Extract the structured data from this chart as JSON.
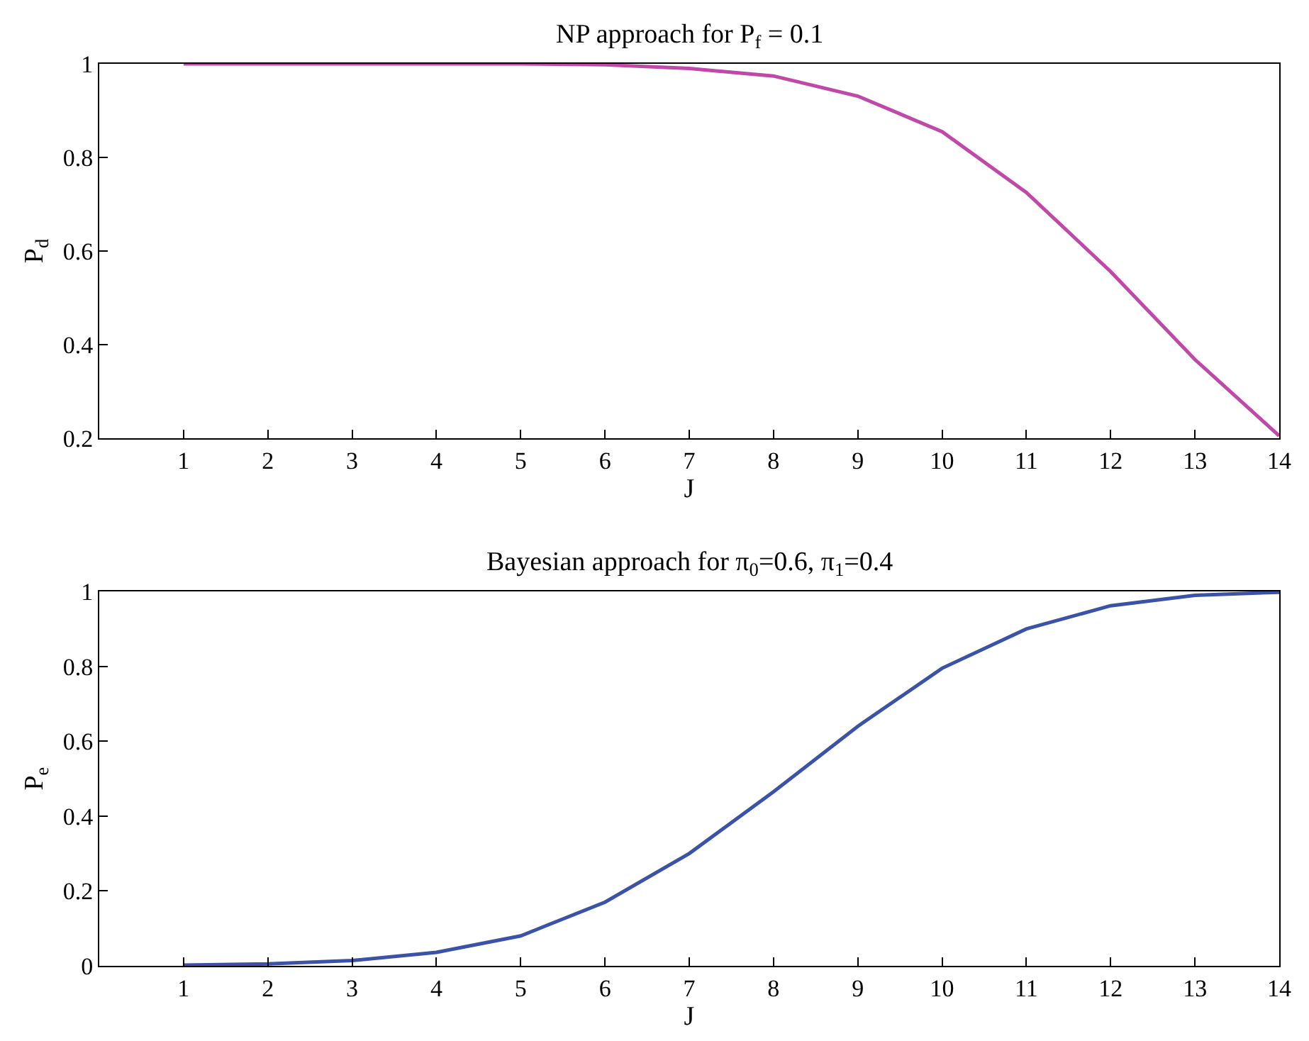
{
  "chart_data": [
    {
      "type": "line",
      "title": "NP approach for P$_{f}$ = 0.1",
      "xlabel": "J",
      "ylabel": "P$_{d}$",
      "x": [
        1,
        2,
        3,
        4,
        5,
        6,
        7,
        8,
        9,
        10,
        11,
        12,
        13,
        14
      ],
      "series": [
        {
          "color": "#c048a8",
          "values": [
            1.0,
            1.0,
            1.0,
            1.0,
            1.0,
            0.998,
            0.99,
            0.974,
            0.931,
            0.855,
            0.725,
            0.556,
            0.368,
            0.205
          ]
        }
      ],
      "xlim": [
        0,
        14
      ],
      "xticks": [
        1,
        2,
        3,
        4,
        5,
        6,
        7,
        8,
        9,
        10,
        11,
        12,
        13,
        14
      ],
      "ylim": [
        0.2,
        1
      ],
      "yticks": [
        0.2,
        0.4,
        0.6,
        0.8,
        1
      ],
      "marker": "none",
      "line_style": "solid"
    },
    {
      "type": "line",
      "title": "Bayesian approach for π$_{0}$=0.6, π$_{1}$=0.4",
      "xlabel": "J",
      "ylabel": "P$_{e}$",
      "x": [
        1,
        2,
        3,
        4,
        5,
        6,
        7,
        8,
        9,
        10,
        11,
        12,
        13,
        14
      ],
      "series": [
        {
          "color": "#3a52a8",
          "values": [
            0.002,
            0.005,
            0.014,
            0.036,
            0.08,
            0.17,
            0.3,
            0.465,
            0.64,
            0.795,
            0.9,
            0.962,
            0.99,
            0.998
          ]
        }
      ],
      "xlim": [
        0,
        14
      ],
      "xticks": [
        1,
        2,
        3,
        4,
        5,
        6,
        7,
        8,
        9,
        10,
        11,
        12,
        13,
        14
      ],
      "ylim": [
        0,
        1
      ],
      "yticks": [
        0,
        0.2,
        0.4,
        0.6,
        0.8,
        1
      ],
      "marker": "none",
      "line_style": "solid"
    }
  ]
}
